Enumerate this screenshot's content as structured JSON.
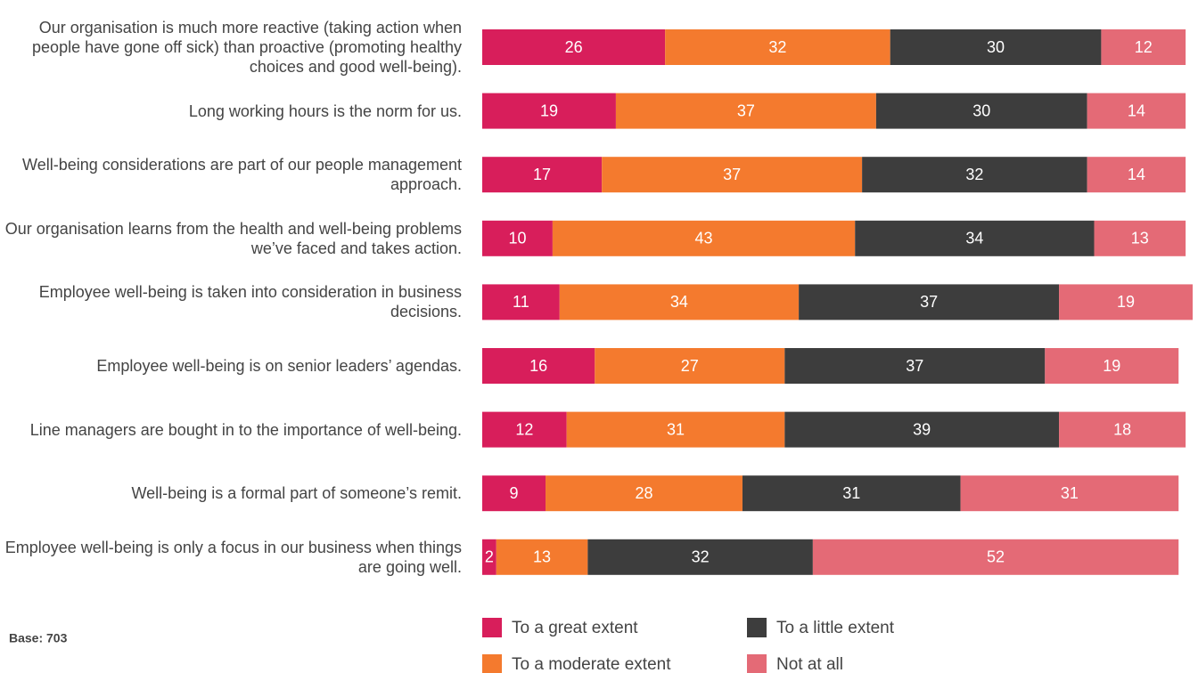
{
  "chart_data": {
    "type": "stacked_bar_horizontal",
    "categories": [
      "Our organisation is much more reactive (taking action when people have gone off sick) than proactive (promoting healthy choices and good well-being).",
      "Long working hours is the norm for us.",
      "Well-being considerations are part of our people management approach.",
      "Our organisation learns from the health and well-being problems we’ve faced and takes action.",
      "Employee well-being is taken into consideration in business decisions.",
      "Employee well-being is on senior leaders’ agendas.",
      "Line managers are bought in to the importance of well-being.",
      "Well-being is a formal part of someone’s remit.",
      "Employee well-being is only a focus in our business when things are going well."
    ],
    "series": [
      {
        "name": "To a great extent",
        "color": "#d81e5b",
        "values": [
          26,
          19,
          17,
          10,
          11,
          16,
          12,
          9,
          2
        ]
      },
      {
        "name": "To a moderate extent",
        "color": "#f47a2e",
        "values": [
          32,
          37,
          37,
          43,
          34,
          27,
          31,
          28,
          13
        ]
      },
      {
        "name": "To a little extent",
        "color": "#3d3d3d",
        "values": [
          30,
          30,
          32,
          34,
          37,
          37,
          39,
          31,
          32
        ]
      },
      {
        "name": "Not at all",
        "color": "#e46a76",
        "values": [
          12,
          14,
          14,
          13,
          19,
          19,
          18,
          31,
          52
        ]
      }
    ],
    "note": "Base: 703"
  }
}
